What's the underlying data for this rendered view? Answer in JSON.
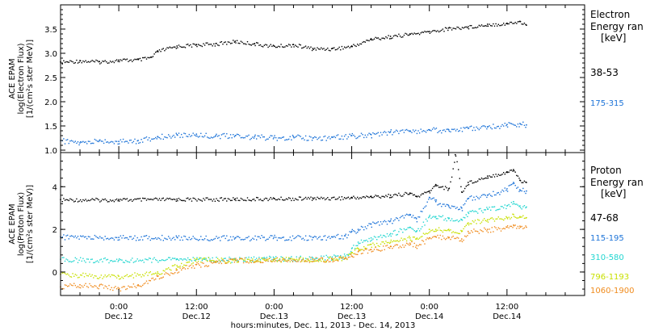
{
  "colors": {
    "background": "#ffffff",
    "frame": "#000000",
    "black": "#000000",
    "blue": "#1c73d8",
    "cyan": "#22d6d0",
    "yellow": "#c8e000",
    "orange": "#f08c1e"
  },
  "x_axis": {
    "title": "hours:minutes, Dec. 11, 2013 - Dec. 14, 2013",
    "ticks": [
      {
        "time": "0:00",
        "date": "Dec.12",
        "hour": 24
      },
      {
        "time": "12:00",
        "date": "Dec.12",
        "hour": 36
      },
      {
        "time": "0:00",
        "date": "Dec.13",
        "hour": 48
      },
      {
        "time": "12:00",
        "date": "Dec.13",
        "hour": 60
      },
      {
        "time": "0:00",
        "date": "Dec.14",
        "hour": 72
      },
      {
        "time": "12:00",
        "date": "Dec.14",
        "hour": 84
      }
    ],
    "minor_step_hours": 3
  },
  "chart_data": [
    {
      "type": "scatter",
      "panel": "electron",
      "ylabel_lines": [
        "ACE EPAM",
        "log(Electron Flux)",
        "[1/(cm²s ster MeV)]"
      ],
      "xlim": [
        15,
        96
      ],
      "ylim": [
        0.95,
        4.0
      ],
      "y_ticks": [
        "1.0",
        "1.5",
        "2.0",
        "2.5",
        "3.0",
        "3.5"
      ],
      "y_tick_values": [
        1.0,
        1.5,
        2.0,
        2.5,
        3.0,
        3.5
      ],
      "legend_title": [
        "Electron",
        "Energy ran"
      ],
      "legend_unit": "[keV]",
      "series": [
        {
          "name": "38-53",
          "color": "black",
          "x": [
            15,
            18,
            21,
            24,
            27,
            29,
            30,
            33,
            36,
            39,
            42,
            45,
            48,
            51,
            54,
            57,
            60,
            63,
            66,
            69,
            72,
            75,
            78,
            81,
            84,
            86,
            87
          ],
          "y": [
            2.82,
            2.85,
            2.83,
            2.86,
            2.87,
            2.92,
            3.05,
            3.15,
            3.18,
            3.2,
            3.25,
            3.2,
            3.15,
            3.18,
            3.1,
            3.1,
            3.15,
            3.3,
            3.35,
            3.4,
            3.45,
            3.52,
            3.55,
            3.6,
            3.62,
            3.66,
            3.58
          ]
        },
        {
          "name": "175-315",
          "color": "blue",
          "x": [
            15,
            18,
            21,
            24,
            27,
            30,
            33,
            36,
            39,
            42,
            45,
            48,
            51,
            54,
            57,
            60,
            63,
            66,
            69,
            72,
            75,
            78,
            81,
            84,
            86,
            87
          ],
          "y": [
            1.2,
            1.15,
            1.2,
            1.18,
            1.2,
            1.28,
            1.32,
            1.33,
            1.3,
            1.3,
            1.28,
            1.26,
            1.28,
            1.25,
            1.27,
            1.3,
            1.32,
            1.38,
            1.4,
            1.42,
            1.42,
            1.45,
            1.48,
            1.53,
            1.55,
            1.52
          ]
        }
      ]
    },
    {
      "type": "scatter",
      "panel": "proton",
      "ylabel_lines": [
        "ACE EPAM",
        "log(Proton Flux)",
        "[1/(cm²s ster MeV)]"
      ],
      "xlim": [
        15,
        96
      ],
      "ylim": [
        -1.1,
        5.6
      ],
      "y_ticks": [
        "0",
        "2",
        "4"
      ],
      "y_tick_values": [
        0,
        2,
        4
      ],
      "legend_title": [
        "Proton",
        "Energy ran"
      ],
      "legend_unit": "[keV]",
      "series": [
        {
          "name": "47-68",
          "color": "black",
          "x": [
            15,
            24,
            33,
            42,
            48,
            54,
            60,
            63,
            66,
            69,
            70,
            72,
            73,
            75,
            76,
            77,
            78,
            81,
            84,
            85,
            86,
            87
          ],
          "y": [
            3.4,
            3.4,
            3.42,
            3.43,
            3.45,
            3.47,
            3.5,
            3.55,
            3.6,
            3.7,
            3.55,
            3.8,
            4.1,
            3.9,
            5.5,
            3.75,
            4.2,
            4.5,
            4.7,
            4.8,
            4.3,
            4.2
          ]
        },
        {
          "name": "115-195",
          "color": "blue",
          "x": [
            15,
            24,
            33,
            42,
            48,
            54,
            57,
            59,
            60,
            61,
            63,
            66,
            69,
            70,
            72,
            73,
            75,
            77,
            78,
            81,
            84,
            85,
            86,
            87
          ],
          "y": [
            1.65,
            1.62,
            1.63,
            1.6,
            1.63,
            1.62,
            1.65,
            1.7,
            1.9,
            2.0,
            2.25,
            2.4,
            2.7,
            2.5,
            3.5,
            3.3,
            3.1,
            3.0,
            3.45,
            3.6,
            3.9,
            4.2,
            3.85,
            3.8
          ]
        },
        {
          "name": "310-580",
          "color": "cyan",
          "x": [
            15,
            24,
            33,
            42,
            48,
            54,
            57,
            59,
            60,
            61,
            63,
            66,
            69,
            70,
            72,
            73,
            75,
            77,
            78,
            81,
            84,
            85,
            86,
            87
          ],
          "y": [
            0.6,
            0.55,
            0.62,
            0.6,
            0.65,
            0.65,
            0.7,
            0.75,
            1.1,
            1.4,
            1.6,
            1.8,
            2.1,
            1.9,
            2.6,
            2.6,
            2.5,
            2.45,
            2.8,
            2.95,
            3.1,
            3.3,
            3.1,
            3.05
          ]
        },
        {
          "name": "796-1193",
          "color": "yellow",
          "x": [
            15,
            24,
            30,
            33,
            36,
            42,
            48,
            54,
            57,
            59,
            60,
            61,
            63,
            66,
            69,
            70,
            72,
            73,
            75,
            77,
            78,
            81,
            84,
            85,
            86,
            87
          ],
          "y": [
            -0.1,
            -0.2,
            0.0,
            0.3,
            0.6,
            0.55,
            0.6,
            0.6,
            0.62,
            0.65,
            0.9,
            1.1,
            1.3,
            1.4,
            1.6,
            1.55,
            2.0,
            2.0,
            2.0,
            1.9,
            2.3,
            2.45,
            2.55,
            2.7,
            2.6,
            2.55
          ]
        },
        {
          "name": "1060-1900",
          "color": "orange",
          "x": [
            15,
            18,
            21,
            24,
            27,
            30,
            33,
            36,
            39,
            42,
            48,
            54,
            57,
            59,
            60,
            61,
            63,
            66,
            69,
            70,
            72,
            73,
            75,
            77,
            78,
            81,
            84,
            85,
            86,
            87
          ],
          "y": [
            -0.7,
            -0.6,
            -0.65,
            -0.8,
            -0.6,
            -0.2,
            0.1,
            0.35,
            0.45,
            0.55,
            0.6,
            0.6,
            0.6,
            0.65,
            0.75,
            0.95,
            1.05,
            1.2,
            1.35,
            1.25,
            1.6,
            1.65,
            1.6,
            1.55,
            1.9,
            2.0,
            2.1,
            2.2,
            2.15,
            2.1
          ]
        }
      ]
    }
  ]
}
